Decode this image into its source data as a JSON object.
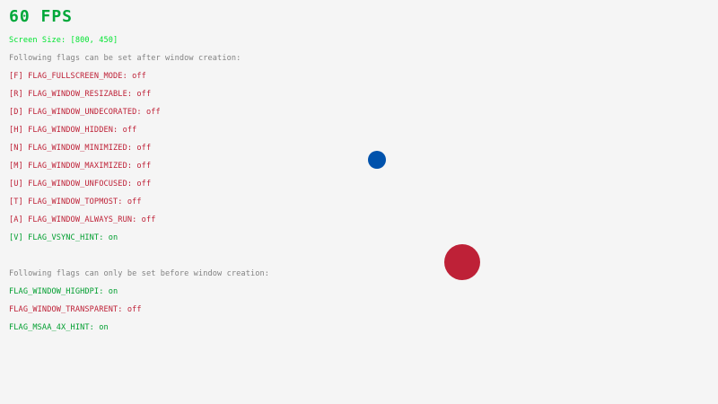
{
  "colors": {
    "background": "#F5F5F5",
    "on": "#009E2F",
    "off": "#BE2137",
    "header": "#828282",
    "screen": "#00E430",
    "fps": "#00A83A",
    "ball_small": "#0052AC",
    "ball_large": "#BE2137"
  },
  "fps": "60 FPS",
  "screen_size": "Screen Size: [800, 450]",
  "runtime_header": "Following flags can be set after window creation:",
  "runtime_flags": [
    {
      "label": "[F] FLAG_FULLSCREEN_MODE: ",
      "state": "off"
    },
    {
      "label": "[R] FLAG_WINDOW_RESIZABLE: ",
      "state": "off"
    },
    {
      "label": "[D] FLAG_WINDOW_UNDECORATED: ",
      "state": "off"
    },
    {
      "label": "[H] FLAG_WINDOW_HIDDEN: ",
      "state": "off"
    },
    {
      "label": "[N] FLAG_WINDOW_MINIMIZED: ",
      "state": "off"
    },
    {
      "label": "[M] FLAG_WINDOW_MAXIMIZED: ",
      "state": "off"
    },
    {
      "label": "[U] FLAG_WINDOW_UNFOCUSED: ",
      "state": "off"
    },
    {
      "label": "[T] FLAG_WINDOW_TOPMOST: ",
      "state": "off"
    },
    {
      "label": "[A] FLAG_WINDOW_ALWAYS_RUN: ",
      "state": "off"
    },
    {
      "label": "[V] FLAG_VSYNC_HINT: ",
      "state": "on"
    }
  ],
  "init_header": "Following flags can only be set before window creation:",
  "init_flags": [
    {
      "label": "FLAG_WINDOW_HIGHDPI: ",
      "state": "on"
    },
    {
      "label": "FLAG_WINDOW_TRANSPARENT: ",
      "state": "off"
    },
    {
      "label": "FLAG_MSAA_4X_HINT: ",
      "state": "on"
    }
  ]
}
